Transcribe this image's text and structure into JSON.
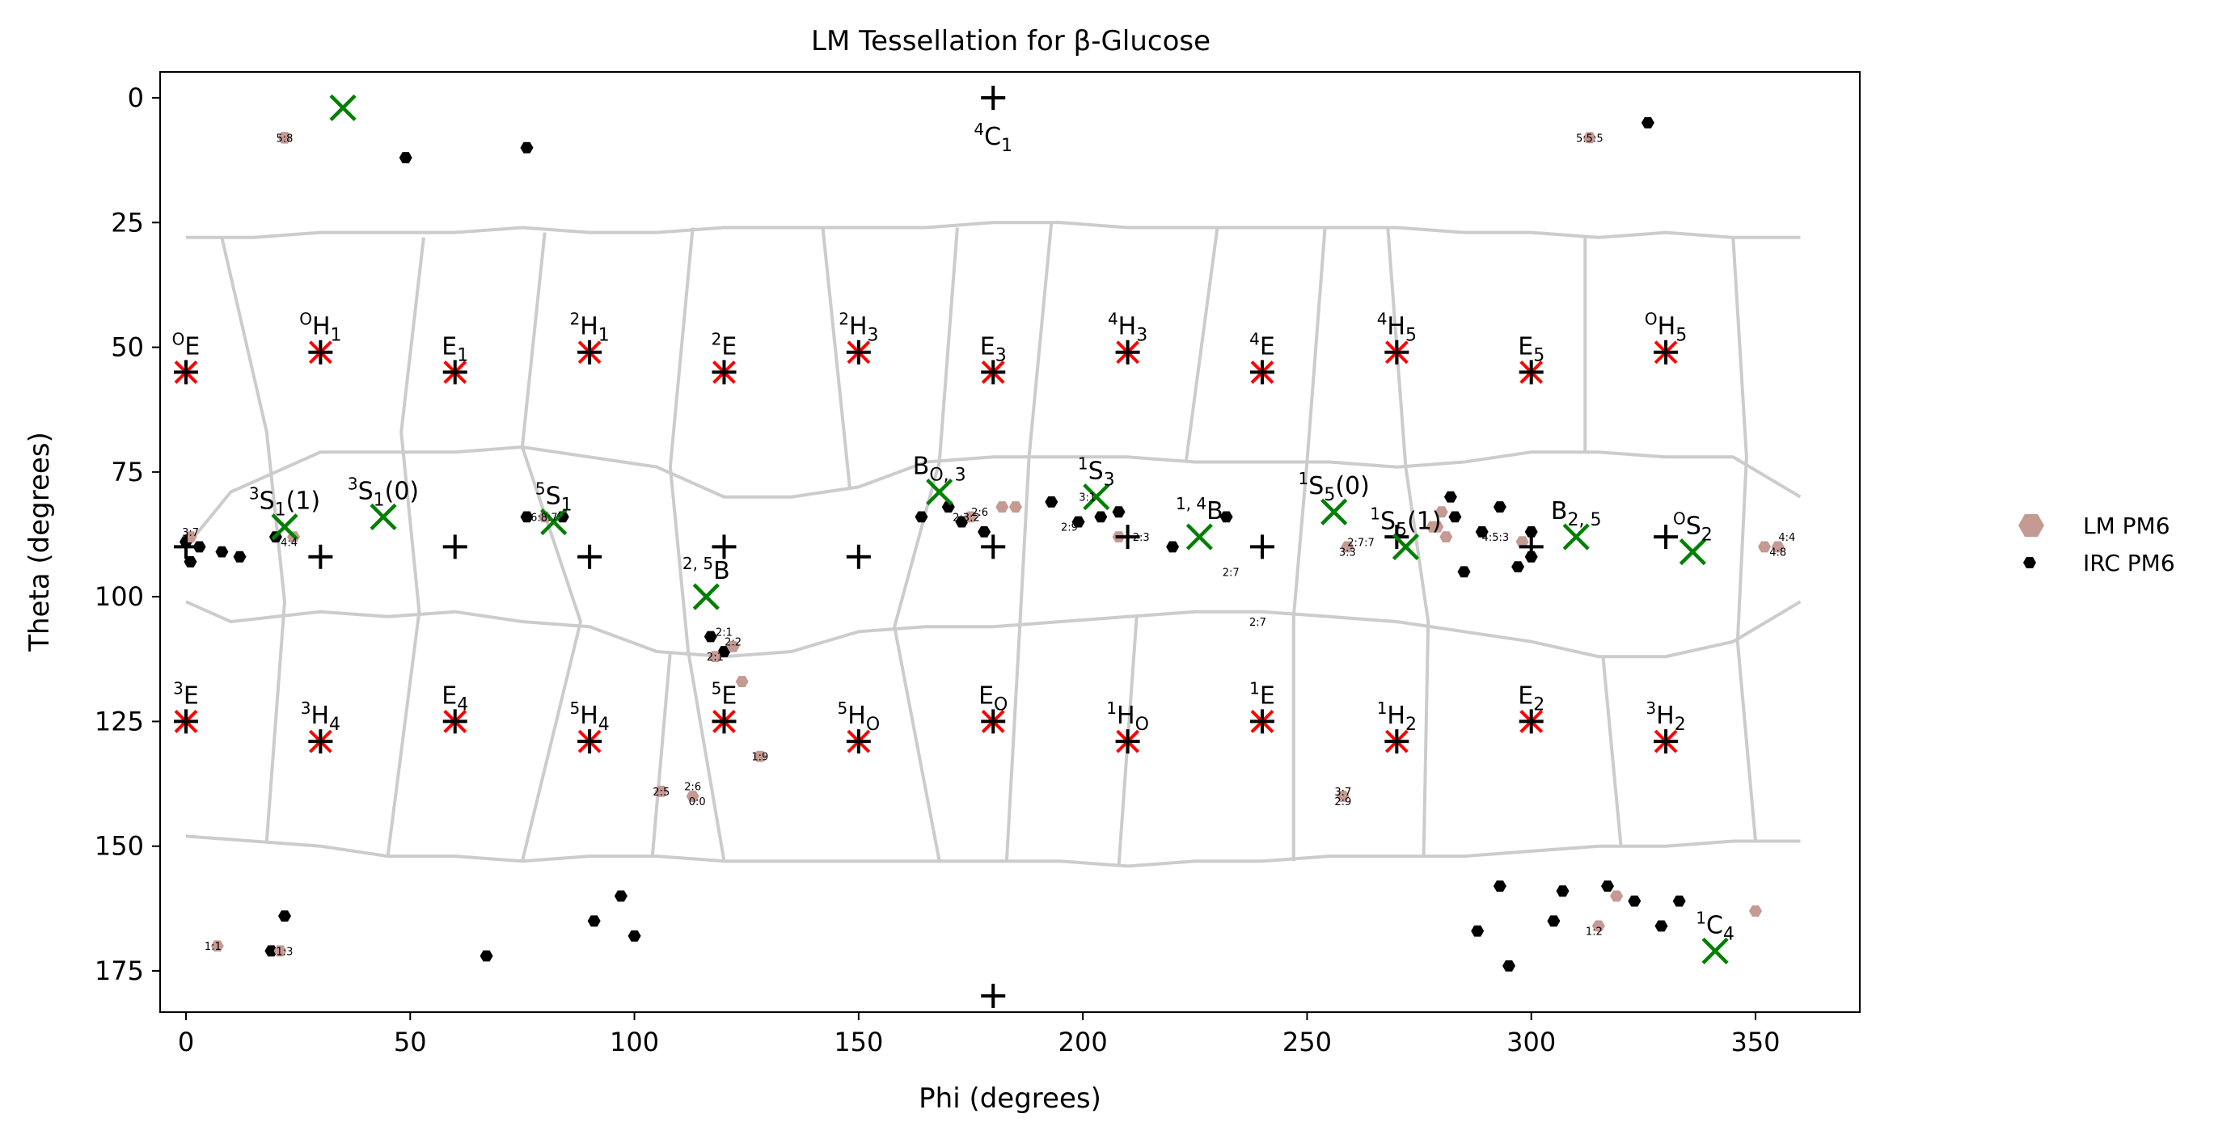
{
  "chart_data": {
    "type": "scatter",
    "title": "LM Tessellation for β-Glucose",
    "xlabel": "Phi (degrees)",
    "ylabel": "Theta (degrees)",
    "xlim": [
      -5,
      365
    ],
    "ylim": [
      185,
      -5
    ],
    "y_inverted": true,
    "xticks": [
      0,
      50,
      100,
      150,
      200,
      250,
      300,
      350
    ],
    "yticks": [
      0,
      25,
      50,
      75,
      100,
      125,
      150,
      175
    ],
    "grid": false,
    "legend_position": "right",
    "colors": {
      "axes": "#000000",
      "tessellation": "#cccccc",
      "lm_pm6": "#c49a93",
      "irc_pm6": "#000000",
      "ref_plus": "#000000",
      "ref_x_red": "#ff0000",
      "lm_center_green": "#008000"
    },
    "legend": [
      {
        "label": "LM PM6",
        "marker": "hexagon",
        "color": "#c49a93"
      },
      {
        "label": "IRC PM6",
        "marker": "hexagon",
        "color": "#000000"
      }
    ],
    "reference_points": [
      {
        "phi": 180,
        "theta": 0,
        "label": "4C1"
      },
      {
        "phi": 0,
        "theta": 55,
        "label": "OE"
      },
      {
        "phi": 30,
        "theta": 51,
        "label": "OH1"
      },
      {
        "phi": 60,
        "theta": 55,
        "label": "E1"
      },
      {
        "phi": 90,
        "theta": 51,
        "label": "2H1"
      },
      {
        "phi": 120,
        "theta": 55,
        "label": "2E"
      },
      {
        "phi": 150,
        "theta": 51,
        "label": "2H3"
      },
      {
        "phi": 180,
        "theta": 55,
        "label": "E3"
      },
      {
        "phi": 210,
        "theta": 51,
        "label": "4H3"
      },
      {
        "phi": 240,
        "theta": 55,
        "label": "4E"
      },
      {
        "phi": 270,
        "theta": 51,
        "label": "4H5"
      },
      {
        "phi": 300,
        "theta": 55,
        "label": "E5"
      },
      {
        "phi": 330,
        "theta": 51,
        "label": "OH5"
      },
      {
        "phi": 0,
        "theta": 90,
        "label": ""
      },
      {
        "phi": 30,
        "theta": 92,
        "label": ""
      },
      {
        "phi": 60,
        "theta": 90,
        "label": ""
      },
      {
        "phi": 90,
        "theta": 92,
        "label": ""
      },
      {
        "phi": 120,
        "theta": 90,
        "label": ""
      },
      {
        "phi": 150,
        "theta": 92,
        "label": ""
      },
      {
        "phi": 180,
        "theta": 90,
        "label": ""
      },
      {
        "phi": 210,
        "theta": 88,
        "label": ""
      },
      {
        "phi": 240,
        "theta": 90,
        "label": ""
      },
      {
        "phi": 270,
        "theta": 88,
        "label": ""
      },
      {
        "phi": 300,
        "theta": 90,
        "label": ""
      },
      {
        "phi": 330,
        "theta": 88,
        "label": ""
      },
      {
        "phi": 0,
        "theta": 125,
        "label": "3E"
      },
      {
        "phi": 30,
        "theta": 129,
        "label": "3H4"
      },
      {
        "phi": 60,
        "theta": 125,
        "label": "E4"
      },
      {
        "phi": 90,
        "theta": 129,
        "label": "5H4"
      },
      {
        "phi": 120,
        "theta": 125,
        "label": "5E"
      },
      {
        "phi": 150,
        "theta": 129,
        "label": "5HO"
      },
      {
        "phi": 180,
        "theta": 125,
        "label": "EO"
      },
      {
        "phi": 210,
        "theta": 129,
        "label": "1HO"
      },
      {
        "phi": 240,
        "theta": 125,
        "label": "1E"
      },
      {
        "phi": 270,
        "theta": 129,
        "label": "1H2"
      },
      {
        "phi": 300,
        "theta": 125,
        "label": "E2"
      },
      {
        "phi": 330,
        "theta": 129,
        "label": "3H2"
      },
      {
        "phi": 180,
        "theta": 180,
        "label": ""
      }
    ],
    "lm_centers": [
      {
        "phi": 35,
        "theta": 2,
        "label": ""
      },
      {
        "phi": 22,
        "theta": 86,
        "label": "3S1(1)"
      },
      {
        "phi": 44,
        "theta": 84,
        "label": "3S1(0)"
      },
      {
        "phi": 82,
        "theta": 85,
        "label": "5S1"
      },
      {
        "phi": 116,
        "theta": 100,
        "label": "2,5B"
      },
      {
        "phi": 168,
        "theta": 79,
        "label": "BO,3"
      },
      {
        "phi": 203,
        "theta": 80,
        "label": "1S3"
      },
      {
        "phi": 226,
        "theta": 88,
        "label": "1,4B"
      },
      {
        "phi": 256,
        "theta": 83,
        "label": "1S5(0)"
      },
      {
        "phi": 272,
        "theta": 90,
        "label": "1S5(1)"
      },
      {
        "phi": 310,
        "theta": 88,
        "label": "B2,5"
      },
      {
        "phi": 336,
        "theta": 91,
        "label": "OS2"
      },
      {
        "phi": 341,
        "theta": 171,
        "label": "1C4"
      }
    ],
    "series": [
      {
        "name": "LM PM6",
        "points": [
          {
            "phi": 22,
            "theta": 8
          },
          {
            "phi": 21,
            "theta": 171
          },
          {
            "phi": 7,
            "theta": 170
          },
          {
            "phi": 313,
            "theta": 8
          },
          {
            "phi": 1,
            "theta": 88
          },
          {
            "phi": 24,
            "theta": 88
          },
          {
            "phi": 80,
            "theta": 84
          },
          {
            "phi": 118,
            "theta": 112
          },
          {
            "phi": 122,
            "theta": 110
          },
          {
            "phi": 124,
            "theta": 117
          },
          {
            "phi": 128,
            "theta": 132
          },
          {
            "phi": 106,
            "theta": 139
          },
          {
            "phi": 113,
            "theta": 140
          },
          {
            "phi": 182,
            "theta": 82
          },
          {
            "phi": 185,
            "theta": 82
          },
          {
            "phi": 175,
            "theta": 84
          },
          {
            "phi": 208,
            "theta": 88
          },
          {
            "phi": 278,
            "theta": 86
          },
          {
            "phi": 280,
            "theta": 83
          },
          {
            "phi": 281,
            "theta": 88
          },
          {
            "phi": 279,
            "theta": 86
          },
          {
            "phi": 259,
            "theta": 90
          },
          {
            "phi": 298,
            "theta": 89
          },
          {
            "phi": 352,
            "theta": 90
          },
          {
            "phi": 355,
            "theta": 90
          },
          {
            "phi": 319,
            "theta": 160
          },
          {
            "phi": 350,
            "theta": 163
          },
          {
            "phi": 258,
            "theta": 140
          },
          {
            "phi": 315,
            "theta": 166
          }
        ]
      },
      {
        "name": "IRC PM6",
        "points": [
          {
            "phi": 22,
            "theta": 8
          },
          {
            "phi": 49,
            "theta": 12
          },
          {
            "phi": 76,
            "theta": 10
          },
          {
            "phi": 326,
            "theta": 5
          },
          {
            "phi": 0,
            "theta": 89
          },
          {
            "phi": 1,
            "theta": 93
          },
          {
            "phi": 3,
            "theta": 90
          },
          {
            "phi": 8,
            "theta": 91
          },
          {
            "phi": 12,
            "theta": 92
          },
          {
            "phi": 20,
            "theta": 88
          },
          {
            "phi": 76,
            "theta": 84
          },
          {
            "phi": 84,
            "theta": 84
          },
          {
            "phi": 117,
            "theta": 108
          },
          {
            "phi": 120,
            "theta": 111
          },
          {
            "phi": 164,
            "theta": 84
          },
          {
            "phi": 170,
            "theta": 82
          },
          {
            "phi": 173,
            "theta": 85
          },
          {
            "phi": 178,
            "theta": 87
          },
          {
            "phi": 193,
            "theta": 81
          },
          {
            "phi": 199,
            "theta": 85
          },
          {
            "phi": 204,
            "theta": 84
          },
          {
            "phi": 208,
            "theta": 83
          },
          {
            "phi": 220,
            "theta": 90
          },
          {
            "phi": 232,
            "theta": 84
          },
          {
            "phi": 282,
            "theta": 80
          },
          {
            "phi": 283,
            "theta": 84
          },
          {
            "phi": 285,
            "theta": 95
          },
          {
            "phi": 289,
            "theta": 87
          },
          {
            "phi": 293,
            "theta": 82
          },
          {
            "phi": 297,
            "theta": 94
          },
          {
            "phi": 300,
            "theta": 92
          },
          {
            "phi": 300,
            "theta": 87
          },
          {
            "phi": 22,
            "theta": 164
          },
          {
            "phi": 19,
            "theta": 171
          },
          {
            "phi": 67,
            "theta": 172
          },
          {
            "phi": 91,
            "theta": 165
          },
          {
            "phi": 97,
            "theta": 160
          },
          {
            "phi": 100,
            "theta": 168
          },
          {
            "phi": 288,
            "theta": 167
          },
          {
            "phi": 293,
            "theta": 158
          },
          {
            "phi": 295,
            "theta": 174
          },
          {
            "phi": 305,
            "theta": 165
          },
          {
            "phi": 307,
            "theta": 159
          },
          {
            "phi": 317,
            "theta": 158
          },
          {
            "phi": 323,
            "theta": 161
          },
          {
            "phi": 329,
            "theta": 166
          },
          {
            "phi": 333,
            "theta": 161
          }
        ]
      }
    ],
    "point_annotations": [
      {
        "phi": 22,
        "theta": 8,
        "text": "5:8"
      },
      {
        "phi": 313,
        "theta": 8,
        "text": "5:5:5"
      },
      {
        "phi": 1,
        "theta": 87,
        "text": "3:7"
      },
      {
        "phi": 23,
        "theta": 89,
        "text": "4:4"
      },
      {
        "phi": 81,
        "theta": 84,
        "text": "6:8:7:1"
      },
      {
        "phi": 120,
        "theta": 107,
        "text": "2:1"
      },
      {
        "phi": 122,
        "theta": 109,
        "text": "2:2"
      },
      {
        "phi": 118,
        "theta": 112,
        "text": "2:1"
      },
      {
        "phi": 128,
        "theta": 132,
        "text": "1:9"
      },
      {
        "phi": 106,
        "theta": 139,
        "text": "2:5"
      },
      {
        "phi": 113,
        "theta": 138,
        "text": "2:6"
      },
      {
        "phi": 114,
        "theta": 141,
        "text": "0:0"
      },
      {
        "phi": 177,
        "theta": 83,
        "text": "2:6"
      },
      {
        "phi": 174,
        "theta": 84,
        "text": "2:3:2"
      },
      {
        "phi": 201,
        "theta": 80,
        "text": "3:1"
      },
      {
        "phi": 197,
        "theta": 86,
        "text": "2:9"
      },
      {
        "phi": 213,
        "theta": 88,
        "text": "2:3"
      },
      {
        "phi": 233,
        "theta": 95,
        "text": "2:7"
      },
      {
        "phi": 239,
        "theta": 105,
        "text": "2:7"
      },
      {
        "phi": 262,
        "theta": 89,
        "text": "2:7:7"
      },
      {
        "phi": 259,
        "theta": 91,
        "text": "3:3"
      },
      {
        "phi": 292,
        "theta": 88,
        "text": "4:5:3"
      },
      {
        "phi": 357,
        "theta": 88,
        "text": "4:4"
      },
      {
        "phi": 355,
        "theta": 91,
        "text": "4:8"
      },
      {
        "phi": 258,
        "theta": 139,
        "text": "3:7"
      },
      {
        "phi": 258,
        "theta": 141,
        "text": "2:9"
      },
      {
        "phi": 314,
        "theta": 167,
        "text": "1:2"
      },
      {
        "phi": 6,
        "theta": 170,
        "text": "1:1"
      },
      {
        "phi": 22,
        "theta": 171,
        "text": "1:3"
      }
    ]
  }
}
